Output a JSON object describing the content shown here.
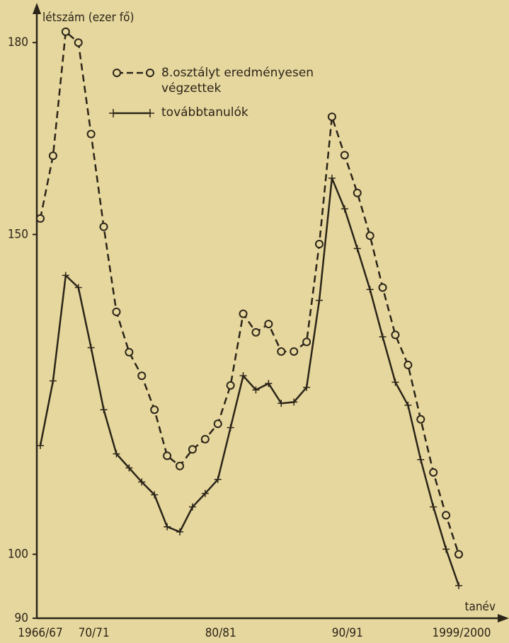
{
  "chart_data": {
    "type": "line",
    "y_label": "létszám (ezer fő)",
    "x_label": "tanév",
    "categories": [
      "1966/67",
      null,
      null,
      null,
      "70/71",
      null,
      null,
      null,
      null,
      null,
      null,
      null,
      null,
      null,
      "80/81",
      null,
      null,
      null,
      null,
      null,
      null,
      null,
      null,
      null,
      "90/91",
      null,
      null,
      null,
      null,
      null,
      null,
      null,
      null,
      "1999/2000"
    ],
    "series": [
      {
        "name": "8.osztályt eredményesen végzettek",
        "color": "#2b2418",
        "dashed": true,
        "marker": "circle",
        "values": [
          152.5,
          162.3,
          181.7,
          180,
          165.7,
          151.2,
          137.9,
          131.6,
          127.9,
          122.6,
          115.4,
          113.8,
          116.4,
          118,
          120.4,
          126.4,
          137.6,
          134.7,
          136,
          131.7,
          131.7,
          133.2,
          148.5,
          168.4,
          162.4,
          156.5,
          149.8,
          141.7,
          134.3,
          129.6,
          121.1,
          112.8,
          106.1,
          100
        ]
      },
      {
        "name": "továbbtanulók",
        "color": "#2b2418",
        "dashed": false,
        "marker": "plus",
        "values": [
          117,
          127.1,
          143.6,
          141.7,
          132.3,
          122.6,
          115.7,
          113.5,
          111.3,
          109.3,
          104.3,
          103.5,
          107.4,
          109.5,
          111.7,
          119.8,
          127.9,
          125.7,
          126.7,
          123.6,
          123.8,
          126.1,
          139.7,
          158.8,
          154,
          147.8,
          141.4,
          134,
          126.9,
          123.3,
          114.8,
          107.4,
          100.8,
          95.1
        ]
      }
    ],
    "ylim": [
      90,
      185
    ],
    "yticks": [
      90,
      100,
      150,
      180
    ],
    "grid": false
  }
}
